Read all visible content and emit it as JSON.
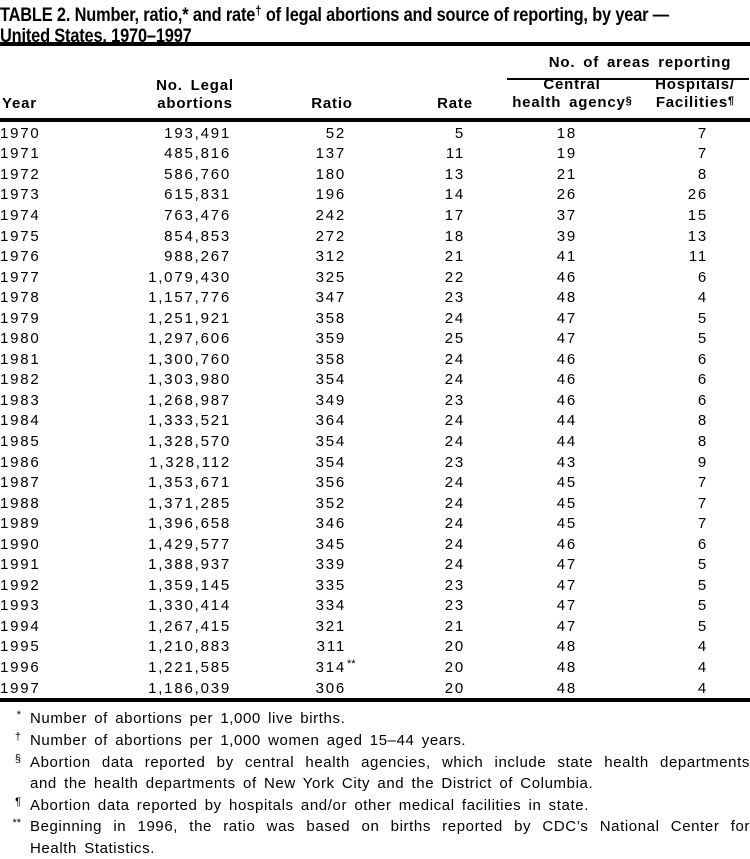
{
  "colors": {
    "text": "#000000",
    "background": "#ffffff",
    "rules": "#000000"
  },
  "title": {
    "line1_part1": "TABLE 2. Number, ratio,* and rate",
    "line1_sup": "†",
    "line1_part2": " of legal abortions and source of reporting, by year —",
    "line2": "United States, 1970–1997"
  },
  "columns": {
    "year": "Year",
    "abortions_line1": "No. Legal",
    "abortions_line2": "abortions",
    "ratio": "Ratio",
    "rate": "Rate",
    "areas_group": "No. of areas reporting",
    "central_line1": "Central",
    "central_line2": "health agency",
    "central_sup": "§",
    "hospitals_line1": "Hospitals/",
    "hospitals_line2": "Facilities",
    "hospitals_sup": "¶"
  },
  "table": {
    "rows": [
      {
        "year": "1970",
        "abortions": "193,491",
        "ratio": "52",
        "rate": "5",
        "central": "18",
        "hospitals": "7"
      },
      {
        "year": "1971",
        "abortions": "485,816",
        "ratio": "137",
        "rate": "11",
        "central": "19",
        "hospitals": "7"
      },
      {
        "year": "1972",
        "abortions": "586,760",
        "ratio": "180",
        "rate": "13",
        "central": "21",
        "hospitals": "8"
      },
      {
        "year": "1973",
        "abortions": "615,831",
        "ratio": "196",
        "rate": "14",
        "central": "26",
        "hospitals": "26"
      },
      {
        "year": "1974",
        "abortions": "763,476",
        "ratio": "242",
        "rate": "17",
        "central": "37",
        "hospitals": "15"
      },
      {
        "year": "1975",
        "abortions": "854,853",
        "ratio": "272",
        "rate": "18",
        "central": "39",
        "hospitals": "13"
      },
      {
        "year": "1976",
        "abortions": "988,267",
        "ratio": "312",
        "rate": "21",
        "central": "41",
        "hospitals": "11"
      },
      {
        "year": "1977",
        "abortions": "1,079,430",
        "ratio": "325",
        "rate": "22",
        "central": "46",
        "hospitals": "6"
      },
      {
        "year": "1978",
        "abortions": "1,157,776",
        "ratio": "347",
        "rate": "23",
        "central": "48",
        "hospitals": "4"
      },
      {
        "year": "1979",
        "abortions": "1,251,921",
        "ratio": "358",
        "rate": "24",
        "central": "47",
        "hospitals": "5"
      },
      {
        "year": "1980",
        "abortions": "1,297,606",
        "ratio": "359",
        "rate": "25",
        "central": "47",
        "hospitals": "5"
      },
      {
        "year": "1981",
        "abortions": "1,300,760",
        "ratio": "358",
        "rate": "24",
        "central": "46",
        "hospitals": "6"
      },
      {
        "year": "1982",
        "abortions": "1,303,980",
        "ratio": "354",
        "rate": "24",
        "central": "46",
        "hospitals": "6"
      },
      {
        "year": "1983",
        "abortions": "1,268,987",
        "ratio": "349",
        "rate": "23",
        "central": "46",
        "hospitals": "6"
      },
      {
        "year": "1984",
        "abortions": "1,333,521",
        "ratio": "364",
        "rate": "24",
        "central": "44",
        "hospitals": "8"
      },
      {
        "year": "1985",
        "abortions": "1,328,570",
        "ratio": "354",
        "rate": "24",
        "central": "44",
        "hospitals": "8"
      },
      {
        "year": "1986",
        "abortions": "1,328,112",
        "ratio": "354",
        "rate": "23",
        "central": "43",
        "hospitals": "9"
      },
      {
        "year": "1987",
        "abortions": "1,353,671",
        "ratio": "356",
        "rate": "24",
        "central": "45",
        "hospitals": "7"
      },
      {
        "year": "1988",
        "abortions": "1,371,285",
        "ratio": "352",
        "rate": "24",
        "central": "45",
        "hospitals": "7"
      },
      {
        "year": "1989",
        "abortions": "1,396,658",
        "ratio": "346",
        "rate": "24",
        "central": "45",
        "hospitals": "7"
      },
      {
        "year": "1990",
        "abortions": "1,429,577",
        "ratio": "345",
        "rate": "24",
        "central": "46",
        "hospitals": "6"
      },
      {
        "year": "1991",
        "abortions": "1,388,937",
        "ratio": "339",
        "rate": "24",
        "central": "47",
        "hospitals": "5"
      },
      {
        "year": "1992",
        "abortions": "1,359,145",
        "ratio": "335",
        "rate": "23",
        "central": "47",
        "hospitals": "5"
      },
      {
        "year": "1993",
        "abortions": "1,330,414",
        "ratio": "334",
        "rate": "23",
        "central": "47",
        "hospitals": "5"
      },
      {
        "year": "1994",
        "abortions": "1,267,415",
        "ratio": "321",
        "rate": "21",
        "central": "47",
        "hospitals": "5"
      },
      {
        "year": "1995",
        "abortions": "1,210,883",
        "ratio": "311",
        "rate": "20",
        "central": "48",
        "hospitals": "4"
      },
      {
        "year": "1996",
        "abortions": "1,221,585",
        "ratio": "314",
        "ratio_suffix": "**",
        "rate": "20",
        "central": "48",
        "hospitals": "4"
      },
      {
        "year": "1997",
        "abortions": "1,186,039",
        "ratio": "306",
        "rate": "20",
        "central": "48",
        "hospitals": "4"
      }
    ]
  },
  "footnotes": [
    {
      "marker": "*",
      "lines": [
        "Number of abortions per 1,000 live births."
      ]
    },
    {
      "marker": "†",
      "lines": [
        "Number of abortions per 1,000 women aged 15–44 years."
      ]
    },
    {
      "marker": "§",
      "lines": [
        "Abortion data reported by central health agencies, which include state health departments",
        "and the health departments of New York City and the District of Columbia."
      ]
    },
    {
      "marker": "¶",
      "lines": [
        "Abortion data reported by hospitals and/or other medical facilities in state."
      ]
    },
    {
      "marker": "**",
      "lines": [
        "Beginning in 1996, the ratio was based on births reported by CDC’s National Center for",
        "Health Statistics."
      ]
    }
  ]
}
